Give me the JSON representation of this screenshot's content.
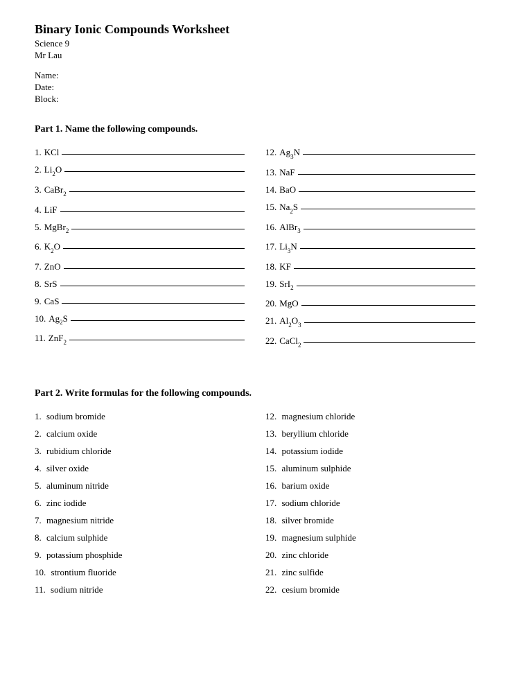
{
  "title": "Binary Ionic Compounds Worksheet",
  "course": "Science 9",
  "teacher": "Mr Lau",
  "fields": {
    "name": "Name:",
    "date": "Date:",
    "block": "Block:"
  },
  "part1": {
    "heading": "Part 1. Name the following compounds.",
    "left": [
      {
        "n": "1.",
        "f": "KCl"
      },
      {
        "n": "2.",
        "f": "Li2O"
      },
      {
        "n": "3.",
        "f": "CaBr2"
      },
      {
        "n": "4.",
        "f": "LiF"
      },
      {
        "n": "5.",
        "f": "MgBr2"
      },
      {
        "n": "6.",
        "f": "K2O"
      },
      {
        "n": "7.",
        "f": "ZnO"
      },
      {
        "n": "8.",
        "f": "SrS"
      },
      {
        "n": "9.",
        "f": "CaS"
      },
      {
        "n": "10.",
        "f": "Ag2S"
      },
      {
        "n": "11.",
        "f": "ZnF2"
      }
    ],
    "right": [
      {
        "n": "12.",
        "f": "Ag3N"
      },
      {
        "n": "13.",
        "f": "NaF"
      },
      {
        "n": "14.",
        "f": "BaO"
      },
      {
        "n": "15.",
        "f": "Na2S"
      },
      {
        "n": "16.",
        "f": "AlBr3"
      },
      {
        "n": "17.",
        "f": "Li3N"
      },
      {
        "n": "18.",
        "f": "KF"
      },
      {
        "n": "19.",
        "f": "SrI2"
      },
      {
        "n": "20.",
        "f": "MgO"
      },
      {
        "n": "21.",
        "f": "Al2O3"
      },
      {
        "n": "22.",
        "f": "CaCl2"
      }
    ]
  },
  "part2": {
    "heading": "Part 2. Write formulas for the following compounds.",
    "left": [
      {
        "n": "1.",
        "t": "sodium bromide"
      },
      {
        "n": "2.",
        "t": "calcium oxide"
      },
      {
        "n": "3.",
        "t": "rubidium chloride"
      },
      {
        "n": "4.",
        "t": "silver oxide"
      },
      {
        "n": "5.",
        "t": "aluminum nitride"
      },
      {
        "n": "6.",
        "t": "zinc iodide"
      },
      {
        "n": "7.",
        "t": "magnesium nitride"
      },
      {
        "n": "8.",
        "t": "calcium sulphide"
      },
      {
        "n": "9.",
        "t": "potassium phosphide"
      },
      {
        "n": "10.",
        "t": "strontium fluoride"
      },
      {
        "n": "11.",
        "t": "sodium nitride"
      }
    ],
    "right": [
      {
        "n": "12.",
        "t": "magnesium chloride"
      },
      {
        "n": "13.",
        "t": "beryllium chloride"
      },
      {
        "n": "14.",
        "t": "potassium iodide"
      },
      {
        "n": "15.",
        "t": "aluminum sulphide"
      },
      {
        "n": "16.",
        "t": "barium oxide"
      },
      {
        "n": "17.",
        "t": "sodium chloride"
      },
      {
        "n": "18.",
        "t": "silver bromide"
      },
      {
        "n": "19.",
        "t": "magnesium sulphide"
      },
      {
        "n": "20.",
        "t": "zinc chloride"
      },
      {
        "n": "21.",
        "t": "zinc sulfide"
      },
      {
        "n": "22.",
        "t": "cesium bromide"
      }
    ]
  }
}
